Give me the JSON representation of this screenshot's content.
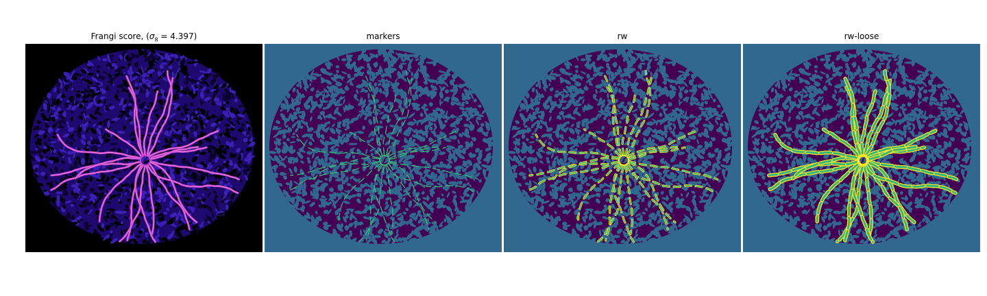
{
  "figure": {
    "panels": [
      {
        "id": "frangi",
        "title_prefix": "Frangi score, (",
        "sigma_symbol": "σ",
        "sigma_sub": "8",
        "title_suffix": " = 4.397)",
        "colors": {
          "background": "#000000",
          "texture": "#2a0f8a",
          "texture_light": "#3a20b5",
          "vessel": "#c13ec9",
          "vessel_bright": "#f08adf"
        }
      },
      {
        "id": "markers",
        "title": "markers",
        "colors": {
          "background": "#31688e",
          "texture": "#440154",
          "vessel": "#35b779"
        }
      },
      {
        "id": "rw",
        "title": "rw",
        "colors": {
          "background": "#31688e",
          "texture": "#440154",
          "vessel": "#35b779",
          "vessel_edge": "#fde725"
        }
      },
      {
        "id": "rw-loose",
        "title": "rw-loose",
        "colors": {
          "background": "#31688e",
          "texture": "#440154",
          "vessel": "#35b779",
          "vessel_edge": "#fde725"
        }
      }
    ]
  }
}
